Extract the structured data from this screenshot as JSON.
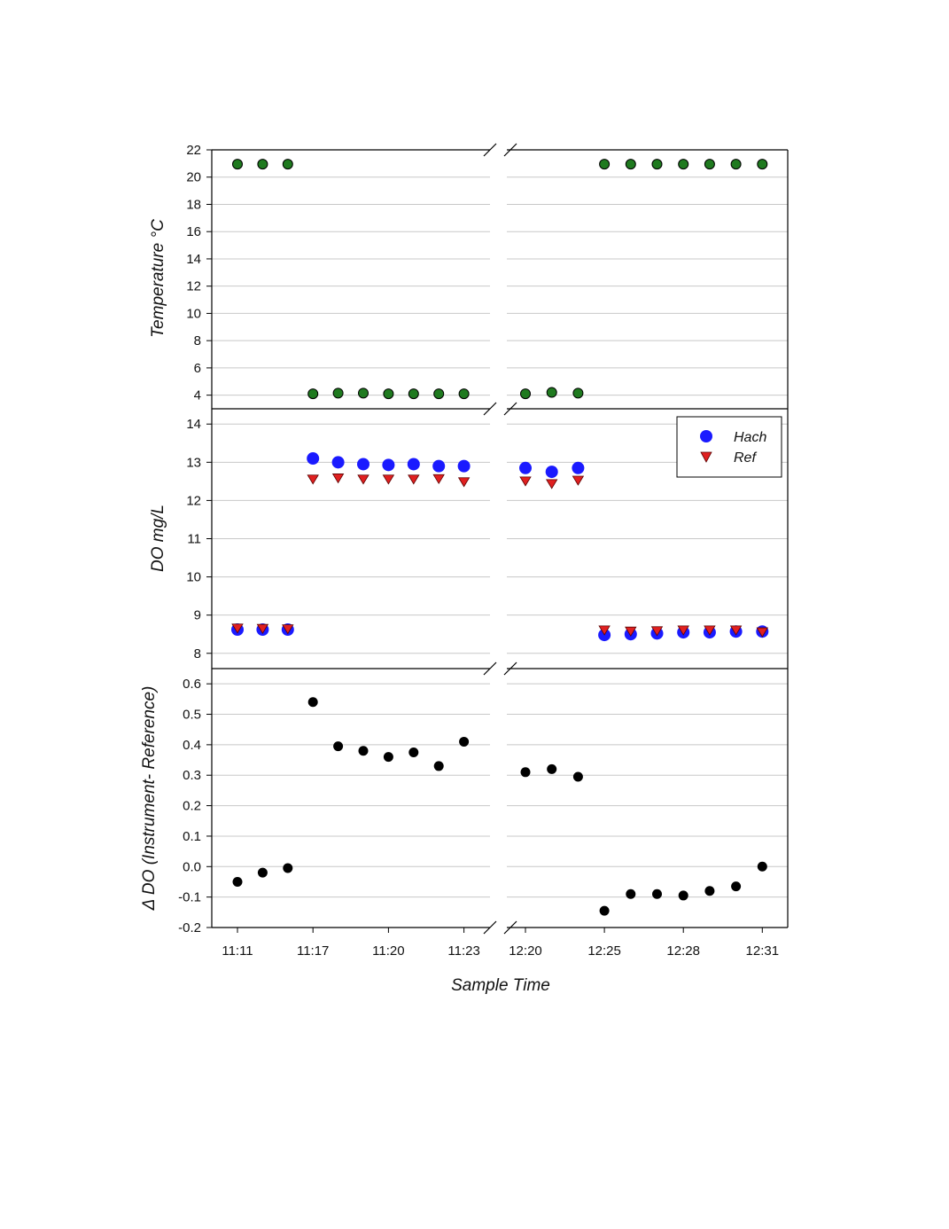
{
  "figure": {
    "xlabel": "Sample Time",
    "x_tick_labels": [
      "11:11",
      "11:17",
      "11:20",
      "11:23",
      "12:20",
      "12:25",
      "12:28",
      "12:31"
    ],
    "x_tick_positions": [
      1,
      4,
      7,
      10,
      12,
      15,
      18,
      21
    ],
    "x_axis_break": "between 11:23 and 12:20",
    "colors": {
      "temperature": "#1f7a1f",
      "hach": "#1a1aff",
      "ref": "#e02020",
      "delta": "#000000",
      "grid": "#c8c8c8"
    }
  },
  "chart_data": [
    {
      "type": "scatter",
      "ylabel": "Temperature °C",
      "ylim": [
        3,
        22
      ],
      "y_ticks": [
        4,
        6,
        8,
        10,
        12,
        14,
        16,
        18,
        20,
        22
      ],
      "grid": true,
      "x": [
        1,
        2,
        3,
        4,
        5,
        6,
        7,
        8,
        9,
        10,
        12,
        13,
        14,
        15,
        16,
        17,
        18,
        19,
        20,
        21
      ],
      "series": [
        {
          "values": [
            20.95,
            20.95,
            20.95,
            4.1,
            4.15,
            4.15,
            4.1,
            4.1,
            4.1,
            4.1,
            4.1,
            4.2,
            4.15,
            20.95,
            20.95,
            20.95,
            20.95,
            20.95,
            20.95,
            20.95
          ],
          "marker": "circle",
          "color": "#1f7a1f"
        }
      ]
    },
    {
      "type": "scatter",
      "ylabel": "DO mg/L",
      "ylim": [
        7.6,
        14.4
      ],
      "y_ticks": [
        8,
        9,
        10,
        11,
        12,
        13,
        14
      ],
      "grid": true,
      "legend": "top-right",
      "x": [
        1,
        2,
        3,
        4,
        5,
        6,
        7,
        8,
        9,
        10,
        12,
        13,
        14,
        15,
        16,
        17,
        18,
        19,
        20,
        21
      ],
      "series": [
        {
          "name": "Hach",
          "marker": "circle",
          "color": "#1a1aff",
          "values": [
            8.62,
            8.62,
            8.62,
            13.1,
            13.0,
            12.95,
            12.93,
            12.95,
            12.9,
            12.9,
            12.85,
            12.75,
            12.85,
            8.48,
            8.5,
            8.52,
            8.55,
            8.55,
            8.57,
            8.57
          ]
        },
        {
          "name": "Ref",
          "marker": "triangle-down",
          "color": "#e02020",
          "values": [
            8.65,
            8.64,
            8.63,
            12.55,
            12.58,
            12.55,
            12.55,
            12.55,
            12.56,
            12.48,
            12.5,
            12.43,
            12.52,
            8.6,
            8.57,
            8.58,
            8.6,
            8.6,
            8.6,
            8.55
          ]
        }
      ]
    },
    {
      "type": "scatter",
      "ylabel": "Δ DO (Instrument- Reference)",
      "ylim": [
        -0.2,
        0.65
      ],
      "y_ticks": [
        -0.2,
        -0.1,
        0.0,
        0.1,
        0.2,
        0.3,
        0.4,
        0.5,
        0.6
      ],
      "y_tick_labels": [
        "-0.2",
        "-0.1",
        "0.0",
        "0.1",
        "0.2",
        "0.3",
        "0.4",
        "0.5",
        "0.6"
      ],
      "grid": true,
      "x": [
        1,
        2,
        3,
        4,
        5,
        6,
        7,
        8,
        9,
        10,
        12,
        13,
        14,
        15,
        16,
        17,
        18,
        19,
        20,
        21
      ],
      "series": [
        {
          "marker": "circle",
          "color": "#000000",
          "values": [
            -0.05,
            -0.02,
            -0.005,
            0.54,
            0.395,
            0.38,
            0.36,
            0.375,
            0.33,
            0.41,
            0.31,
            0.32,
            0.295,
            -0.145,
            -0.09,
            -0.09,
            -0.095,
            -0.08,
            -0.065,
            0.0
          ]
        }
      ]
    }
  ]
}
